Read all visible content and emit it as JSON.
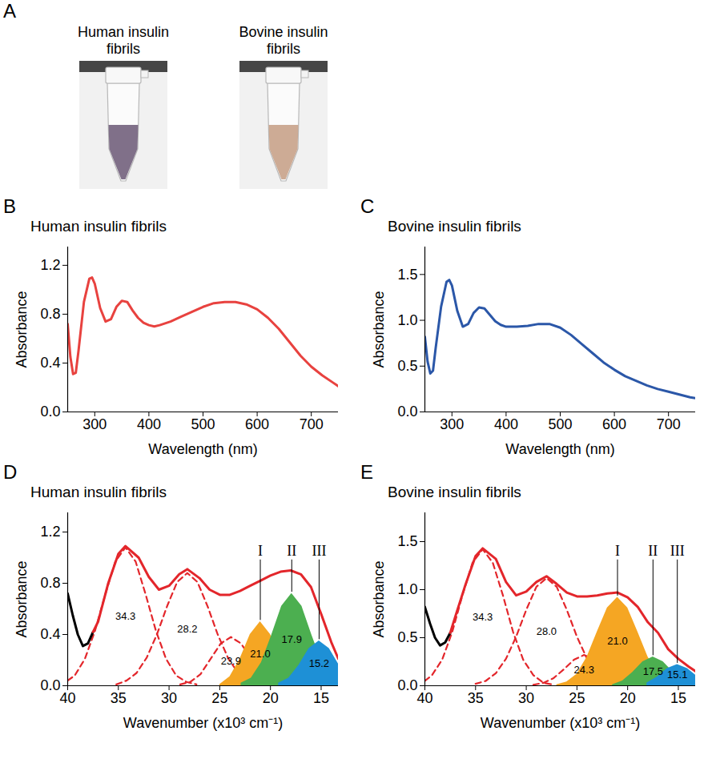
{
  "photos": {
    "letter": "A",
    "items": [
      {
        "label": "Human insulin fibrils",
        "color": "#75647f"
      },
      {
        "label": "Bovine insulin fibrils",
        "color": "#c9a48c"
      }
    ]
  },
  "chart_data": [
    {
      "type": "line",
      "letter": "B",
      "title": "Human insulin fibrils",
      "x_label": "Wavelength (nm)",
      "y_label": "Absorbance",
      "xlim": [
        250,
        750
      ],
      "xticks": [
        300,
        400,
        500,
        600,
        700
      ],
      "ylim": [
        0,
        1.35
      ],
      "yticks": [
        {
          "value": 0,
          "label": "0.0"
        },
        0.4,
        0.8,
        1.2
      ],
      "color": "#e8423f",
      "line_style": "solid",
      "x": [
        250,
        255,
        260,
        265,
        270,
        280,
        290,
        295,
        300,
        310,
        320,
        330,
        340,
        350,
        360,
        370,
        380,
        390,
        400,
        410,
        420,
        440,
        460,
        480,
        500,
        520,
        540,
        560,
        580,
        600,
        620,
        640,
        660,
        680,
        700,
        720,
        740,
        750
      ],
      "values": [
        0.72,
        0.45,
        0.31,
        0.32,
        0.5,
        0.9,
        1.09,
        1.1,
        1.05,
        0.85,
        0.74,
        0.76,
        0.86,
        0.91,
        0.9,
        0.83,
        0.77,
        0.73,
        0.71,
        0.7,
        0.71,
        0.74,
        0.78,
        0.82,
        0.86,
        0.89,
        0.9,
        0.9,
        0.88,
        0.84,
        0.77,
        0.68,
        0.57,
        0.46,
        0.37,
        0.3,
        0.24,
        0.21
      ]
    },
    {
      "type": "line",
      "letter": "C",
      "title": "Bovine insulin fibrils",
      "x_label": "Wavelength (nm)",
      "y_label": "Absorbance",
      "xlim": [
        250,
        750
      ],
      "xticks": [
        300,
        400,
        500,
        600,
        700
      ],
      "ylim": [
        0,
        1.8
      ],
      "yticks": [
        {
          "value": 0,
          "label": "0.0"
        },
        0.5,
        {
          "value": 1,
          "label": "1.0"
        },
        1.5
      ],
      "color": "#2b57a8",
      "line_style": "solid",
      "x": [
        250,
        255,
        260,
        265,
        270,
        280,
        290,
        295,
        300,
        310,
        320,
        330,
        340,
        350,
        360,
        370,
        380,
        390,
        400,
        410,
        420,
        440,
        460,
        480,
        500,
        520,
        540,
        560,
        580,
        600,
        620,
        640,
        660,
        680,
        700,
        720,
        740,
        750
      ],
      "values": [
        0.82,
        0.55,
        0.42,
        0.45,
        0.7,
        1.15,
        1.42,
        1.44,
        1.38,
        1.1,
        0.93,
        0.96,
        1.08,
        1.14,
        1.13,
        1.06,
        0.99,
        0.95,
        0.93,
        0.93,
        0.93,
        0.94,
        0.96,
        0.96,
        0.92,
        0.84,
        0.74,
        0.64,
        0.54,
        0.46,
        0.39,
        0.34,
        0.29,
        0.25,
        0.22,
        0.19,
        0.16,
        0.15
      ]
    },
    {
      "type": "line",
      "letter": "D",
      "title": "Human insulin fibrils",
      "x_label": "Wavenumber (x10³ cm⁻¹)",
      "y_label": "Absorbance",
      "xlim": [
        40,
        13.3
      ],
      "xticks": [
        40,
        35,
        30,
        25,
        20,
        15
      ],
      "ylim": [
        0,
        1.35
      ],
      "yticks": [
        {
          "value": 0,
          "label": "0.0"
        },
        0.4,
        0.8,
        1.2
      ],
      "series": [
        {
          "type": "line",
          "color": "#e3262b",
          "line_style": "dashed",
          "label": "34.3",
          "peak": 34.3,
          "x": [
            40,
            39.3,
            38.3,
            37.3,
            36.3,
            35.3,
            34.3,
            33.3,
            32.3,
            31.3,
            30.3,
            29.3,
            28.3,
            27.3
          ],
          "values": [
            0.04,
            0.08,
            0.21,
            0.43,
            0.71,
            0.97,
            1.08,
            0.97,
            0.71,
            0.43,
            0.21,
            0.08,
            0.03,
            0.01
          ]
        },
        {
          "type": "line",
          "color": "#e3262b",
          "line_style": "dashed",
          "label": "28.2",
          "peak": 28.2,
          "x": [
            35.2,
            34.2,
            33.2,
            32.2,
            31.2,
            30.2,
            29.2,
            28.2,
            27.2,
            26.2,
            25.2,
            24.2,
            23.2,
            22.2,
            21.2
          ],
          "values": [
            0.01,
            0.04,
            0.1,
            0.22,
            0.4,
            0.62,
            0.81,
            0.88,
            0.81,
            0.62,
            0.4,
            0.22,
            0.1,
            0.04,
            0.01
          ]
        },
        {
          "type": "line",
          "color": "#e3262b",
          "line_style": "dashed",
          "label": "23.9",
          "peak": 23.9,
          "x": [
            28.9,
            27.9,
            26.9,
            25.9,
            24.9,
            23.9,
            22.9,
            21.9,
            20.9,
            19.9,
            18.9
          ],
          "values": [
            0.01,
            0.03,
            0.09,
            0.21,
            0.33,
            0.38,
            0.33,
            0.21,
            0.09,
            0.03,
            0.01
          ]
        },
        {
          "type": "area",
          "color": "#f5a623",
          "label": "21.0",
          "peak": 21.0,
          "annotation": "I",
          "x": [
            25,
            24,
            23,
            22,
            21,
            20,
            19,
            18,
            17
          ],
          "values": [
            0.01,
            0.07,
            0.21,
            0.4,
            0.5,
            0.4,
            0.21,
            0.07,
            0.01
          ]
        },
        {
          "type": "area",
          "color": "#4caf50",
          "label": "17.9",
          "peak": 17.9,
          "annotation": "II",
          "x": [
            22.9,
            21.9,
            20.9,
            19.9,
            18.9,
            17.9,
            16.9,
            15.9,
            14.9,
            13.9,
            13.3
          ],
          "values": [
            0.02,
            0.06,
            0.18,
            0.39,
            0.62,
            0.72,
            0.62,
            0.39,
            0.18,
            0.06,
            0.03
          ]
        },
        {
          "type": "area",
          "color": "#1e90d6",
          "label": "15.2",
          "peak": 15.2,
          "annotation": "III",
          "x": [
            19.2,
            18.2,
            17.2,
            16.2,
            15.2,
            14.2,
            13.3
          ],
          "values": [
            0.02,
            0.06,
            0.16,
            0.29,
            0.35,
            0.29,
            0.17
          ]
        },
        {
          "type": "line",
          "color": "#000000",
          "line_style": "solid",
          "x": [
            40,
            39.5,
            39,
            38.5,
            38,
            37.5
          ],
          "values": [
            0.72,
            0.55,
            0.4,
            0.31,
            0.33,
            0.42
          ]
        },
        {
          "type": "line",
          "color": "#e3262b",
          "line_style": "solid",
          "x": [
            37.5,
            37,
            36,
            35,
            34.3,
            33,
            32,
            31,
            30,
            29,
            28.2,
            27,
            26,
            25,
            24,
            23,
            22,
            21,
            20,
            19,
            18,
            17,
            16,
            15,
            14,
            13.3
          ],
          "values": [
            0.42,
            0.5,
            0.8,
            1.03,
            1.09,
            1.0,
            0.85,
            0.75,
            0.78,
            0.87,
            0.91,
            0.84,
            0.75,
            0.71,
            0.71,
            0.74,
            0.78,
            0.82,
            0.86,
            0.89,
            0.9,
            0.87,
            0.77,
            0.56,
            0.34,
            0.21
          ]
        }
      ]
    },
    {
      "type": "line",
      "letter": "E",
      "title": "Bovine insulin fibrils",
      "x_label": "Wavenumber (x10³ cm⁻¹)",
      "y_label": "Absorbance",
      "xlim": [
        40,
        13.3
      ],
      "xticks": [
        40,
        35,
        30,
        25,
        20,
        15
      ],
      "ylim": [
        0,
        1.8
      ],
      "yticks": [
        {
          "value": 0,
          "label": "0.0"
        },
        0.5,
        {
          "value": 1,
          "label": "1.0"
        },
        1.5
      ],
      "series": [
        {
          "type": "line",
          "color": "#e3262b",
          "line_style": "dashed",
          "label": "34.3",
          "peak": 34.3,
          "x": [
            40,
            39.3,
            38.3,
            37.3,
            36.3,
            35.3,
            34.3,
            33.3,
            32.3,
            31.3,
            30.3,
            29.3,
            28.3,
            27.3
          ],
          "values": [
            0.05,
            0.11,
            0.27,
            0.56,
            0.94,
            1.28,
            1.42,
            1.28,
            0.94,
            0.56,
            0.27,
            0.11,
            0.03,
            0.01
          ]
        },
        {
          "type": "line",
          "color": "#e3262b",
          "line_style": "dashed",
          "label": "28.0",
          "peak": 28.0,
          "x": [
            35,
            34,
            33,
            32,
            31,
            30,
            29,
            28,
            27,
            26,
            25,
            24,
            23,
            22,
            21
          ],
          "values": [
            0.02,
            0.05,
            0.13,
            0.28,
            0.51,
            0.79,
            1.03,
            1.12,
            1.03,
            0.79,
            0.51,
            0.28,
            0.13,
            0.05,
            0.02
          ]
        },
        {
          "type": "line",
          "color": "#e3262b",
          "line_style": "dashed",
          "label": "24.3",
          "peak": 24.3,
          "x": [
            29.3,
            28.3,
            27.3,
            26.3,
            25.3,
            24.3,
            23.3,
            22.3,
            21.3,
            20.3,
            19.3
          ],
          "values": [
            0.01,
            0.03,
            0.08,
            0.17,
            0.27,
            0.32,
            0.27,
            0.17,
            0.08,
            0.03,
            0.01
          ]
        },
        {
          "type": "area",
          "color": "#f5a623",
          "label": "21.0",
          "peak": 21.0,
          "annotation": "I",
          "x": [
            27,
            26,
            25,
            24,
            23,
            22,
            21,
            20,
            19,
            18,
            17,
            16,
            15
          ],
          "values": [
            0.01,
            0.04,
            0.12,
            0.3,
            0.56,
            0.81,
            0.92,
            0.81,
            0.56,
            0.3,
            0.12,
            0.04,
            0.01
          ]
        },
        {
          "type": "area",
          "color": "#4caf50",
          "label": "17.5",
          "peak": 17.5,
          "annotation": "II",
          "x": [
            21.5,
            20.5,
            19.5,
            18.5,
            17.5,
            16.5,
            15.5,
            14.5,
            13.5
          ],
          "values": [
            0.01,
            0.05,
            0.14,
            0.25,
            0.3,
            0.25,
            0.14,
            0.05,
            0.01
          ]
        },
        {
          "type": "area",
          "color": "#1e90d6",
          "label": "15.1",
          "peak": 15.1,
          "annotation": "III",
          "x": [
            18.1,
            17.1,
            16.1,
            15.1,
            14.1,
            13.3
          ],
          "values": [
            0.03,
            0.09,
            0.18,
            0.22,
            0.18,
            0.11
          ]
        },
        {
          "type": "line",
          "color": "#000000",
          "line_style": "solid",
          "x": [
            40,
            39.5,
            39,
            38.5,
            38,
            37.5
          ],
          "values": [
            0.82,
            0.65,
            0.5,
            0.42,
            0.45,
            0.55
          ]
        },
        {
          "type": "line",
          "color": "#e3262b",
          "line_style": "solid",
          "x": [
            37.5,
            37,
            36,
            35,
            34.3,
            33,
            32,
            31,
            30,
            29,
            28,
            27,
            26,
            25,
            24,
            23,
            22,
            21,
            20,
            19,
            18,
            17,
            16,
            15,
            14,
            13.3
          ],
          "values": [
            0.55,
            0.72,
            1.05,
            1.35,
            1.43,
            1.32,
            1.08,
            0.94,
            0.98,
            1.08,
            1.14,
            1.06,
            0.97,
            0.93,
            0.93,
            0.94,
            0.96,
            0.97,
            0.92,
            0.82,
            0.66,
            0.55,
            0.38,
            0.28,
            0.2,
            0.15
          ]
        }
      ]
    }
  ]
}
